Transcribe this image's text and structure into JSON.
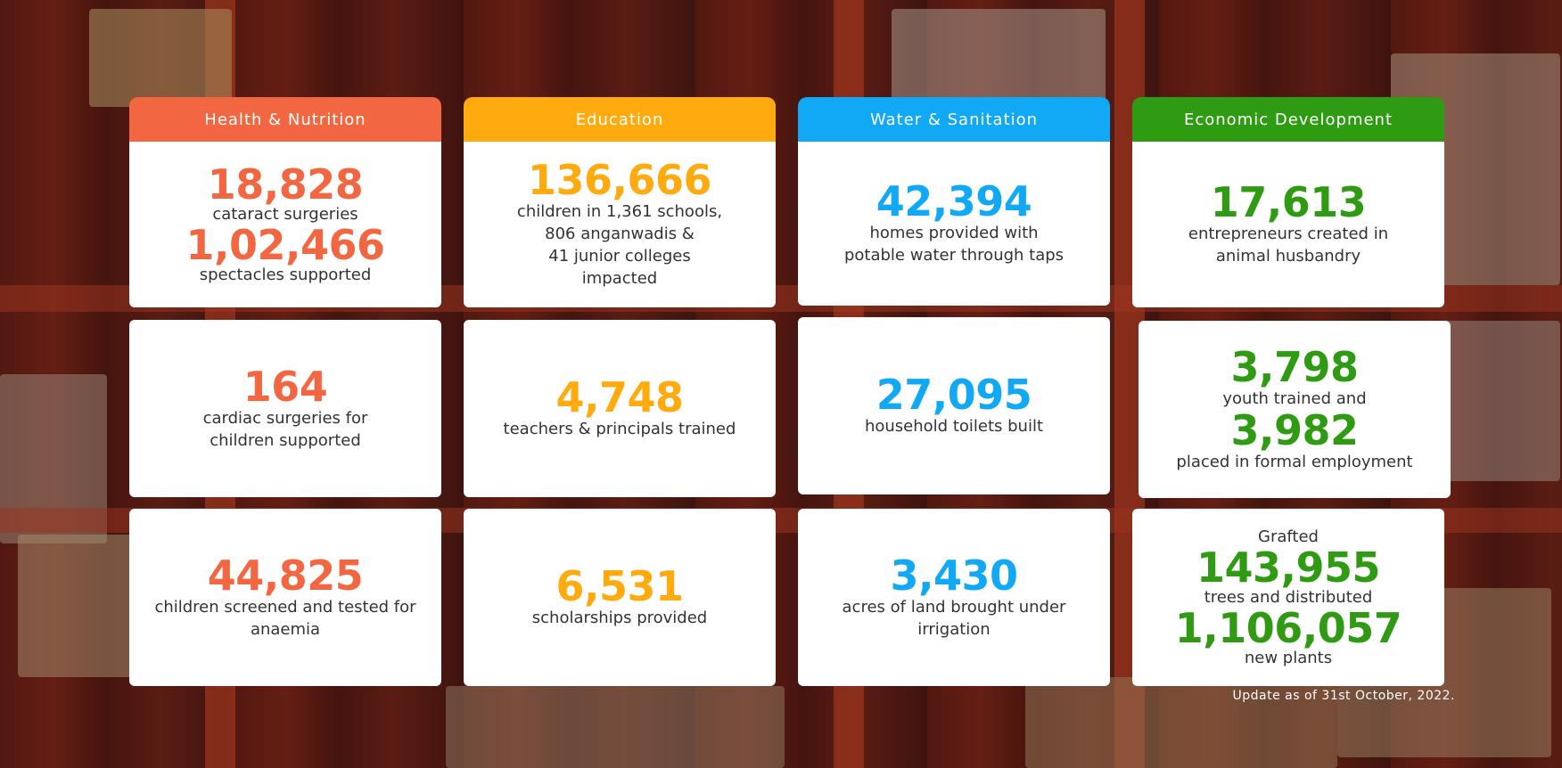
{
  "columns": [
    {
      "title": "Health & Nutrition",
      "color": "#f26641"
    },
    {
      "title": "Education",
      "color": "#ffaa0f"
    },
    {
      "title": "Water & Sanitation",
      "color": "#11a8f5"
    },
    {
      "title": "Economic Development",
      "color": "#2e9b12"
    }
  ],
  "health": {
    "card1": {
      "num1": "18,828",
      "label1": "cataract surgeries",
      "num2": "1,02,466",
      "label2": "spectacles supported"
    },
    "card2": {
      "num": "164",
      "label": "cardiac surgeries for\nchildren supported"
    },
    "card3": {
      "num": "44,825",
      "label": "children screened and tested for\nanaemia"
    }
  },
  "education": {
    "card1": {
      "num": "136,666",
      "label": "children in 1,361 schools,\n806 anganwadis &\n41 junior colleges\nimpacted"
    },
    "card2": {
      "num": "4,748",
      "label": "teachers & principals trained"
    },
    "card3": {
      "num": "6,531",
      "label": "scholarships provided"
    }
  },
  "water": {
    "card1": {
      "num": "42,394",
      "label": "homes provided with\npotable water through taps"
    },
    "card2": {
      "num": "27,095",
      "label": "household toilets built"
    },
    "card3": {
      "num": "3,430",
      "label": "acres of land brought under\nirrigation"
    }
  },
  "economic": {
    "card1": {
      "num": "17,613",
      "label": "entrepreneurs created in\nanimal husbandry"
    },
    "card2": {
      "num1": "3,798",
      "label1": "youth trained and",
      "num2": "3,982",
      "label2": "placed in formal employment"
    },
    "card3": {
      "label0": "Grafted",
      "num1": "143,955",
      "label1": "trees and distributed",
      "num2": "1,106,057",
      "label2": "new plants"
    }
  },
  "footnote": "Update as of 31st October, 2022."
}
